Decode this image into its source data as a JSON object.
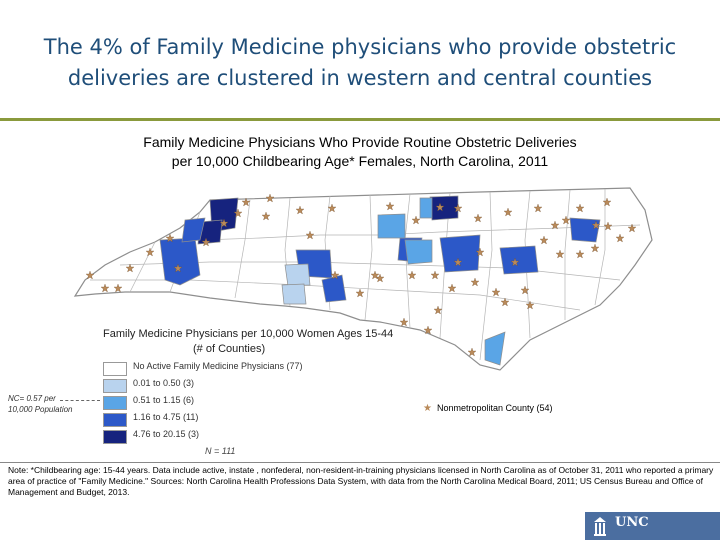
{
  "slide": {
    "title_line1": "The 4% of Family Medicine physicians who provide obstetric",
    "title_line2": "deliveries are clustered in western and central counties"
  },
  "map": {
    "title_line1": "Family Medicine Physicians Who Provide Routine Obstetric Deliveries",
    "title_line2": "per 10,000 Childbearing Age* Females, North Carolina, 2011",
    "colors": {
      "none": "#ffffff",
      "c1": "#b9d3ee",
      "c2": "#5aa5e6",
      "c3": "#2c58c8",
      "c4": "#16237e",
      "border": "#8e8e8e",
      "star": "#b98a5a"
    }
  },
  "legend": {
    "title_line1": "Family Medicine Physicians per 10,000 Women Ages 15-44",
    "title_line2": "(# of Counties)",
    "items": [
      {
        "label": "No Active Family Medicine Physicians (77)",
        "color": "#ffffff"
      },
      {
        "label": "0.01 to 0.50 (3)",
        "color": "#b9d3ee"
      },
      {
        "label": "0.51 to 1.15 (6)",
        "color": "#5aa5e6"
      },
      {
        "label": "1.16 to 4.75 (11)",
        "color": "#2c58c8"
      },
      {
        "label": "4.76 to 20.15 (3)",
        "color": "#16237e"
      }
    ],
    "nc_note_line1": "NC= 0.57 per",
    "nc_note_line2": "10,000 Population",
    "n_total": "N = 111",
    "nonmetro_label": "Nonmetropolitan County (54)"
  },
  "note": "Note: *Childbearing age: 15-44 years. Data include active, instate , nonfederal, non-resident-in-training physicians licensed in North Carolina as of October 31, 2011 who reported a primary area of practice of \"Family Medicine.\" Sources: North Carolina Health Professions Data System, with data from the North Carolina Medical Board, 2011; US Census Bureau and Office of Management and Budget, 2013.",
  "footer": {
    "logo_text": "UNC"
  }
}
